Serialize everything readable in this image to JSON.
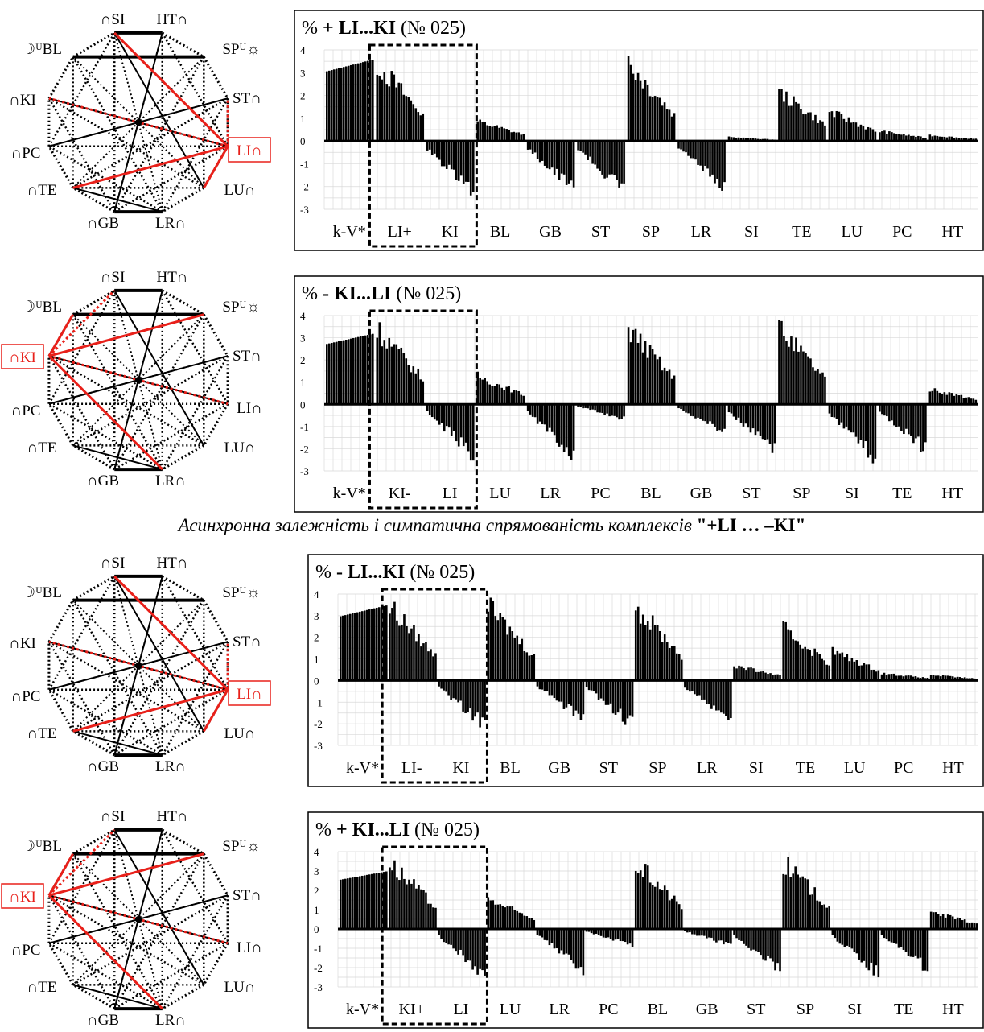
{
  "caption": {
    "italic": "Асинхронна залежність і симпатична спрямованість комплексів ",
    "bold": "\"+LI … –KI\""
  },
  "diagram_labels": {
    "SI": "∩SI",
    "HT": "HT∩",
    "BL": "☽ᵁBL",
    "SP": "SPᵁ☼",
    "KI": "∩KI",
    "ST": "ST∩",
    "PC": "∩PC",
    "LI": "LI∩",
    "TE": "∩TE",
    "LU": "LU∩",
    "GB": "∩GB",
    "LR": "LR∩"
  },
  "diagrams": [
    {
      "highlight": "LI"
    },
    {
      "highlight": "KI"
    },
    {
      "highlight": "LI"
    },
    {
      "highlight": "KI"
    }
  ],
  "colors": {
    "highlight": "#e8201a",
    "bars": "#000000",
    "grid": "#d9d9d9"
  },
  "chart_data": [
    {
      "type": "bar",
      "title_prefix": "% ",
      "title_sign": "+",
      "title_bold": "LI...KI",
      "title_suffix": "(№ 025)",
      "ylim": [
        -3,
        4
      ],
      "yticks": [
        "4",
        "3",
        "2",
        "1",
        "0",
        "-1",
        "-2",
        "-3"
      ],
      "categories": [
        "k-V*",
        "LI+",
        "KI",
        "BL",
        "GB",
        "ST",
        "SP",
        "LR",
        "SI",
        "TE",
        "LU",
        "PC",
        "HT"
      ],
      "series": [
        {
          "values": [
            3.6,
            4.0,
            -2.8,
            1.0,
            -2.6,
            -2.7,
            4.0,
            -2.5,
            0.2,
            2.5,
            1.5,
            0.5,
            0.3
          ]
        }
      ],
      "grid": true
    },
    {
      "type": "bar",
      "title_prefix": "% ",
      "title_sign": "-",
      "title_bold": "KI...LI",
      "title_suffix": "(№ 025)",
      "ylim": [
        -3,
        4
      ],
      "yticks": [
        "4",
        "3",
        "2",
        "1",
        "0",
        "-1",
        "-2",
        "-3"
      ],
      "categories": [
        "k-V*",
        "KI-",
        "LI",
        "LU",
        "LR",
        "PC",
        "BL",
        "GB",
        "ST",
        "SP",
        "SI",
        "TE",
        "HT"
      ],
      "series": [
        {
          "values": [
            3.2,
            4.0,
            -2.8,
            1.5,
            -2.8,
            -0.8,
            4.0,
            -1.5,
            -2.6,
            4.0,
            -3.0,
            -2.5,
            0.8
          ]
        }
      ],
      "grid": true
    },
    {
      "type": "bar",
      "title_prefix": "% ",
      "title_sign": "-",
      "title_bold": "LI...KI",
      "title_suffix": "(№ 025)",
      "ylim": [
        -3,
        4
      ],
      "yticks": [
        "4",
        "3",
        "2",
        "1",
        "0",
        "-1",
        "-2",
        "-3"
      ],
      "categories": [
        "k-V*",
        "LI-",
        "KI",
        "BL",
        "GB",
        "ST",
        "SP",
        "LR",
        "SI",
        "TE",
        "LU",
        "PC",
        "HT"
      ],
      "series": [
        {
          "values": [
            3.5,
            4.0,
            -2.5,
            4.0,
            -2.2,
            -2.5,
            4.0,
            -2.3,
            0.8,
            2.8,
            1.6,
            0.4,
            0.3
          ]
        }
      ],
      "grid": true
    },
    {
      "type": "bar",
      "title_prefix": "% ",
      "title_sign": "+",
      "title_bold": "KI...LI",
      "title_suffix": "(№ 025)",
      "ylim": [
        -3,
        4
      ],
      "yticks": [
        "4",
        "3",
        "2",
        "1",
        "0",
        "-1",
        "-2",
        "-3"
      ],
      "categories": [
        "k-V*",
        "KI+",
        "LI",
        "LU",
        "LR",
        "PC",
        "BL",
        "GB",
        "ST",
        "SP",
        "SI",
        "TE",
        "HT"
      ],
      "series": [
        {
          "values": [
            3.0,
            4.0,
            -2.9,
            1.8,
            -2.5,
            -1.0,
            4.0,
            -1.0,
            -2.6,
            4.0,
            -2.8,
            -2.5,
            1.0
          ]
        }
      ],
      "grid": true
    }
  ]
}
